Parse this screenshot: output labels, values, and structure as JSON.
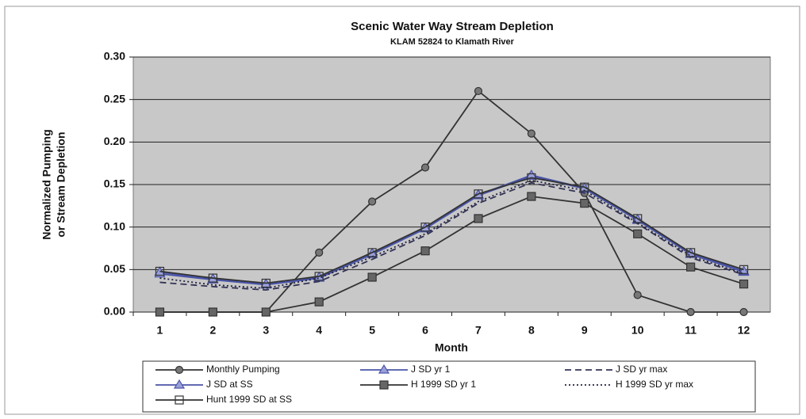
{
  "chart_data": {
    "type": "line",
    "title": "Scenic Water Way Stream Depletion",
    "subtitle": "KLAM 52824 to Klamath River",
    "ylabel": [
      "Normalized Pumping",
      "or Stream Depletion"
    ],
    "xlabel": "Month",
    "categories": [
      "1",
      "2",
      "3",
      "4",
      "5",
      "6",
      "7",
      "8",
      "9",
      "10",
      "11",
      "12"
    ],
    "ylim": [
      0,
      0.3
    ],
    "yticks": [
      {
        "value": 0,
        "label": "0.00"
      },
      {
        "value": 0.05,
        "label": "0.05"
      },
      {
        "value": 0.1,
        "label": "0.10"
      },
      {
        "value": 0.15,
        "label": "0.15"
      },
      {
        "value": 0.2,
        "label": "0.20"
      },
      {
        "value": 0.25,
        "label": "0.25"
      },
      {
        "value": 0.3,
        "label": "0.30"
      }
    ],
    "grid": true,
    "legend": "bottom",
    "series": [
      {
        "name": "Monthly Pumping",
        "color": "#333333",
        "marker": "circle",
        "dash": "solid",
        "values": [
          0,
          0,
          0,
          0.07,
          0.13,
          0.17,
          0.26,
          0.21,
          0.14,
          0.02,
          0,
          0
        ]
      },
      {
        "name": "J SD yr 1",
        "color": "#4a55a8",
        "marker": "triangle",
        "dash": "solid",
        "values": [
          0.045,
          0.038,
          0.032,
          0.04,
          0.068,
          0.098,
          0.137,
          0.16,
          0.145,
          0.108,
          0.068,
          0.047
        ]
      },
      {
        "name": "J SD yr max",
        "color": "#333355",
        "marker": "none",
        "dash": "dashed",
        "values": [
          0.035,
          0.03,
          0.026,
          0.036,
          0.062,
          0.09,
          0.128,
          0.152,
          0.14,
          0.104,
          0.064,
          0.044
        ]
      },
      {
        "name": "J SD at SS",
        "color": "#4a55a8",
        "marker": "triangle",
        "dash": "solid",
        "values": [
          0.047,
          0.039,
          0.033,
          0.041,
          0.069,
          0.099,
          0.138,
          0.161,
          0.146,
          0.109,
          0.069,
          0.048
        ]
      },
      {
        "name": "H 1999 SD yr 1",
        "color": "#333333",
        "marker": "square",
        "dash": "solid",
        "values": [
          0,
          0,
          0,
          0.012,
          0.041,
          0.072,
          0.11,
          0.136,
          0.128,
          0.092,
          0.053,
          0.033
        ]
      },
      {
        "name": "H 1999 SD yr max",
        "color": "#222244",
        "marker": "none",
        "dash": "dotted",
        "values": [
          0.04,
          0.032,
          0.028,
          0.04,
          0.065,
          0.092,
          0.13,
          0.155,
          0.143,
          0.105,
          0.066,
          0.045
        ]
      },
      {
        "name": "Hunt 1999 SD at SS",
        "color": "#333333",
        "marker": "open-square",
        "dash": "solid",
        "values": [
          0.048,
          0.04,
          0.034,
          0.042,
          0.07,
          0.1,
          0.139,
          0.158,
          0.147,
          0.11,
          0.07,
          0.05
        ]
      }
    ]
  }
}
